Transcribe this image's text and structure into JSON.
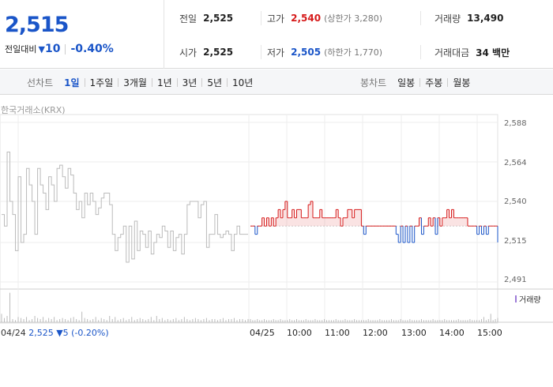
{
  "summary": {
    "price": "2,515",
    "change_label": "전일대비",
    "change_value": "10",
    "change_rate": "-0.40%",
    "prev_close": {
      "label": "전일",
      "value": "2,525"
    },
    "open": {
      "label": "시가",
      "value": "2,525"
    },
    "high": {
      "label": "고가",
      "value": "2,540",
      "paren": "(상한가 3,280)"
    },
    "low": {
      "label": "저가",
      "value": "2,505",
      "paren": "(하한가 1,770)"
    },
    "volume": {
      "label": "거래량",
      "value": "13,490"
    },
    "amount": {
      "label": "거래대금",
      "value": "34 백만"
    }
  },
  "toolbar": {
    "line_chart_label": "선차트",
    "periods": [
      "1일",
      "1주일",
      "3개월",
      "1년",
      "3년",
      "5년",
      "10년"
    ],
    "active_period": "1일",
    "candle_chart_label": "봉차트",
    "candle_periods": [
      "일봉",
      "주봉",
      "월봉"
    ]
  },
  "chart": {
    "exchange_label": "한국거래소(KRX)",
    "prev_day_info": {
      "date": "04/24",
      "price": "2,525",
      "change": "5",
      "rate": "(-0.20%)"
    },
    "volume_legend": "거래량",
    "colors": {
      "up": "#d61a1a",
      "down": "#1a55c8",
      "prev_day": "#bbbbbb",
      "volume": "#9d7bd8"
    }
  },
  "chart_data": {
    "type": "line",
    "base_price": 2525,
    "ylim": [
      2491,
      2588
    ],
    "y_ticks": [
      "2,588",
      "2,564",
      "2,540",
      "2,515",
      "2,491"
    ],
    "y_tick_values": [
      2588,
      2564,
      2540,
      2515,
      2491
    ],
    "x_ticks": [
      "04/25",
      "10:00",
      "11:00",
      "12:00",
      "13:00",
      "14:00",
      "15:00"
    ],
    "prev_day_series": {
      "name": "04/24",
      "values": [
        2532,
        2525,
        2570,
        2540,
        2532,
        2510,
        2555,
        2515,
        2520,
        2560,
        2550,
        2540,
        2520,
        2560,
        2550,
        2545,
        2535,
        2555,
        2550,
        2540,
        2560,
        2562,
        2555,
        2548,
        2560,
        2556,
        2545,
        2535,
        2540,
        2530,
        2545,
        2538,
        2545,
        2540,
        2532,
        2536,
        2542,
        2545,
        2545,
        2538,
        2520,
        2510,
        2518,
        2520,
        2525,
        2503,
        2525,
        2505,
        2528,
        2510,
        2522,
        2520,
        2512,
        2522,
        2508,
        2515,
        2520,
        2518,
        2525,
        2522,
        2512,
        2522,
        2510,
        2518,
        2520,
        2508,
        2520,
        2538,
        2540,
        2540,
        2540,
        2530,
        2538,
        2540,
        2512,
        2520,
        2520,
        2532,
        2520,
        2518,
        2520,
        2522,
        2520,
        2510,
        2520,
        2525,
        2520,
        2520,
        2520,
        2520
      ]
    },
    "today_series": {
      "name": "04/25",
      "values": [
        2525,
        2525,
        2520,
        2525,
        2525,
        2530,
        2525,
        2530,
        2525,
        2530,
        2525,
        2530,
        2535,
        2530,
        2535,
        2540,
        2530,
        2530,
        2535,
        2530,
        2535,
        2535,
        2530,
        2530,
        2530,
        2538,
        2540,
        2530,
        2530,
        2530,
        2535,
        2530,
        2530,
        2530,
        2530,
        2530,
        2530,
        2535,
        2530,
        2525,
        2530,
        2530,
        2535,
        2535,
        2530,
        2535,
        2535,
        2535,
        2525,
        2520,
        2525,
        2525,
        2525,
        2525,
        2525,
        2525,
        2525,
        2525,
        2525,
        2525,
        2525,
        2525,
        2525,
        2520,
        2515,
        2525,
        2515,
        2525,
        2515,
        2525,
        2515,
        2525,
        2525,
        2530,
        2520,
        2525,
        2525,
        2530,
        2525,
        2530,
        2520,
        2530,
        2525,
        2530,
        2530,
        2535,
        2530,
        2535,
        2530,
        2530,
        2530,
        2530,
        2530,
        2530,
        2525,
        2525,
        2525,
        2525,
        2520,
        2525,
        2520,
        2525,
        2520,
        2525,
        2525,
        2525,
        2525,
        2515
      ]
    },
    "prev_day_volume": [
      8,
      4,
      6,
      28,
      3,
      2,
      5,
      4,
      3,
      5,
      2,
      3,
      6,
      4,
      3,
      5,
      2,
      4,
      3,
      5,
      2,
      3,
      4,
      3,
      2,
      4,
      5,
      3,
      2,
      10,
      4,
      3,
      2,
      3,
      5,
      2,
      4,
      3,
      2,
      6,
      3,
      5,
      2,
      3,
      4,
      2,
      3,
      5,
      2,
      3,
      4,
      3,
      2,
      3,
      5,
      2,
      6,
      3,
      4,
      2,
      3,
      2,
      3,
      4,
      2,
      3,
      5,
      3,
      2,
      3,
      4,
      3,
      2,
      3,
      4,
      2,
      3,
      3,
      2,
      3,
      4,
      2,
      3,
      3,
      4,
      2,
      3,
      3,
      2,
      3
    ],
    "today_volume": [
      3,
      2,
      2,
      3,
      2,
      2,
      3,
      2,
      2,
      2,
      3,
      2,
      2,
      3,
      2,
      2,
      2,
      3,
      2,
      2,
      3,
      2,
      2,
      2,
      3,
      2,
      2,
      2,
      3,
      2,
      2,
      2,
      3,
      2,
      2,
      2,
      2,
      3,
      2,
      2,
      2,
      3,
      2,
      2,
      2,
      3,
      2,
      2,
      2,
      2,
      2,
      3,
      2,
      2,
      2,
      2,
      3,
      2,
      2,
      2,
      2,
      3,
      2,
      2,
      2,
      3,
      2,
      2,
      2,
      3,
      2,
      2,
      2,
      2,
      3,
      2,
      2,
      2,
      2,
      3,
      2,
      2,
      2,
      2,
      3,
      2,
      2,
      2,
      2,
      2,
      3,
      2,
      2,
      2,
      2,
      3,
      2,
      2,
      2,
      2,
      3,
      5,
      2,
      3,
      8,
      2,
      3,
      4
    ]
  }
}
